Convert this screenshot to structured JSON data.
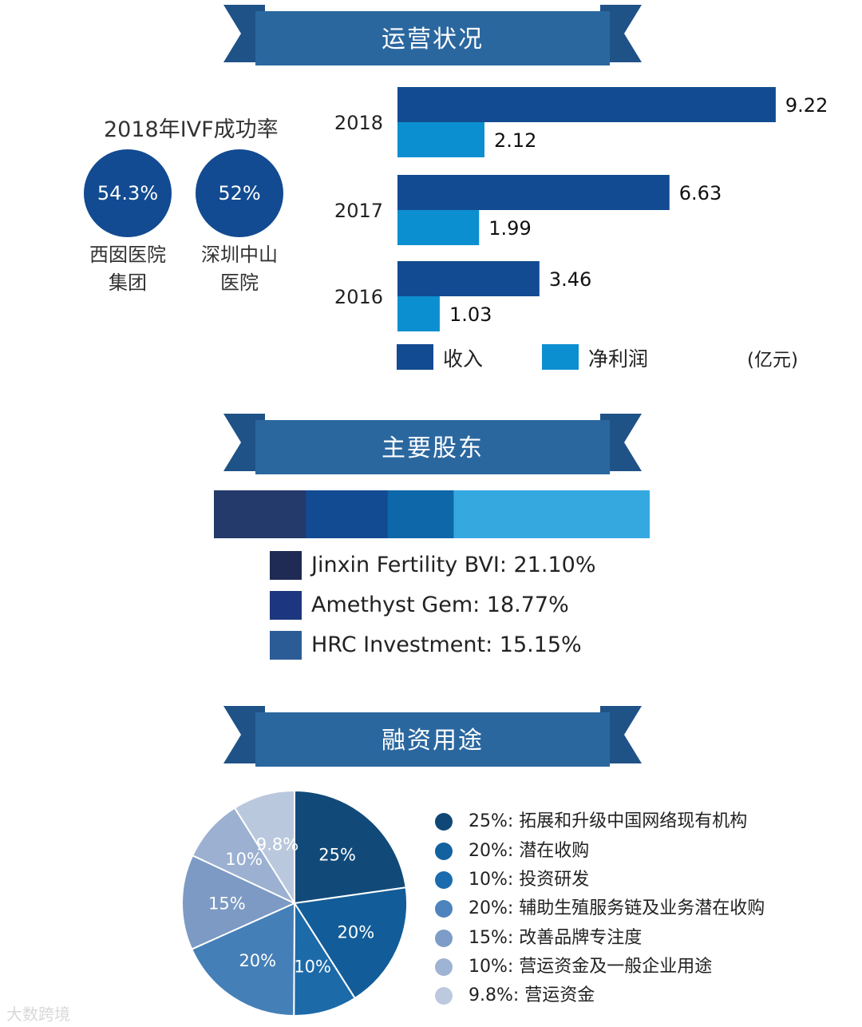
{
  "sections": {
    "operations_title": "运营状况",
    "shareholders_title": "主要股东",
    "funds_title": "融资用途"
  },
  "colors": {
    "ribbon": "#2b679f",
    "ribbon_dark": "#1f5287",
    "revenue": "#124b91",
    "profit": "#0c8fd0",
    "ivf_circle": "#124b91"
  },
  "ivf": {
    "title": "2018年IVF成功率",
    "hospitals": [
      {
        "rate": "54.3%",
        "name": "西囡医院\n集团"
      },
      {
        "rate": "52%",
        "name": "深圳中山\n医院"
      }
    ]
  },
  "watermark": "大数跨境",
  "chart_data": [
    {
      "type": "bar",
      "orientation": "horizontal",
      "categories": [
        "2018",
        "2017",
        "2016"
      ],
      "series": [
        {
          "name": "收入",
          "values": [
            9.22,
            6.63,
            3.46
          ],
          "color": "#124b91"
        },
        {
          "name": "净利润",
          "values": [
            2.12,
            1.99,
            1.03
          ],
          "color": "#0c8fd0"
        }
      ],
      "data_labels": [
        [
          "9.22",
          "6.63",
          "3.46"
        ],
        [
          "2.12",
          "1.99",
          "1.03"
        ]
      ],
      "unit_label": "(亿元)",
      "legend_position": "bottom",
      "xlim": [
        0,
        10
      ]
    },
    {
      "type": "bar",
      "orientation": "stacked-horizontal",
      "segments": [
        {
          "name": "Jinxin Fertility BVI",
          "value": 21.1,
          "label": "Jinxin Fertility BVI: 21.10%",
          "color": "#233a6b"
        },
        {
          "name": "Amethyst Gem",
          "value": 18.77,
          "label": "Amethyst Gem: 18.77%",
          "color": "#124b91"
        },
        {
          "name": "HRC Investment",
          "value": 15.15,
          "label": "HRC Investment: 15.15%",
          "color": "#0e67a8"
        },
        {
          "name": "",
          "value": 44.98,
          "label": "",
          "color": "#35a8e0"
        }
      ],
      "legend_swatch_colors": [
        "#1f2a55",
        "#1c3780",
        "#2c5c96"
      ]
    },
    {
      "type": "pie",
      "slices": [
        {
          "value": 25,
          "label": "25%",
          "legend": "25%: 拓展和升级中国网络现有机构",
          "color": "#114a79",
          "dot": "#0f4876"
        },
        {
          "value": 20,
          "label": "20%",
          "legend": "20%: 潜在收购",
          "color": "#125d99",
          "dot": "#12629f"
        },
        {
          "value": 10,
          "label": "10%",
          "legend": "10%: 投资研发",
          "color": "#1d6aa9",
          "dot": "#1a6cae"
        },
        {
          "value": 20,
          "label": "20%",
          "legend": "20%: 辅助生殖服务链及业务潜在收购",
          "color": "#457fb7",
          "dot": "#4d84bd"
        },
        {
          "value": 15,
          "label": "15%",
          "legend": "15%: 改善品牌专注度",
          "color": "#7c9ac3",
          "dot": "#7d9cc7"
        },
        {
          "value": 10,
          "label": "10%",
          "legend": "10%: 营运资金及一般企业用途",
          "color": "#9cb1d1",
          "dot": "#9fb3d3"
        },
        {
          "value": 9.8,
          "label": "9.8%",
          "legend": "9.8%: 营运资金",
          "color": "#bac8dd",
          "dot": "#bcc9de"
        }
      ]
    }
  ]
}
